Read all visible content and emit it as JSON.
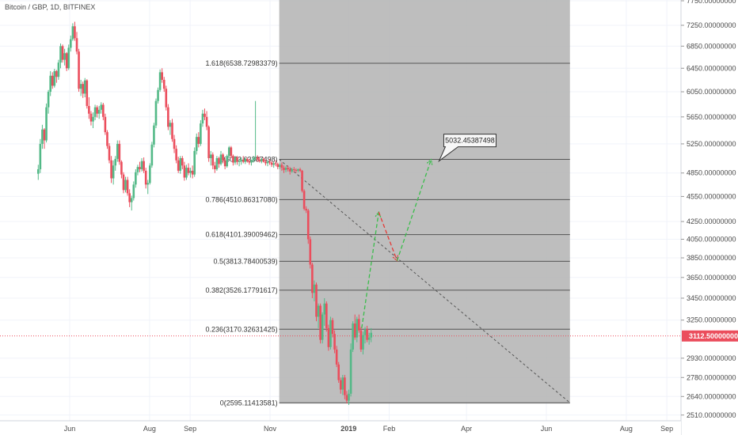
{
  "header": {
    "title": "Bitcoin / GBP, 1D, BITFINEX"
  },
  "colors": {
    "up": "#53b987",
    "down": "#eb4d5c",
    "projection_up": "#3bbd4c",
    "projection_down": "#e53935",
    "shaded_region": "#b3b3b3",
    "current_price_line": "#eb4d5c",
    "grid": "#f0f3fa",
    "axis_text": "#4a4a4a"
  },
  "chart_data": {
    "type": "candlestick",
    "symbol": "Bitcoin / GBP",
    "interval": "1D",
    "exchange": "BITFINEX",
    "y_axis": {
      "scale": "log",
      "ylim": [
        2450,
        7800
      ],
      "ticks": [
        "7750.00000000",
        "7250.00000000",
        "6850.00000000",
        "6450.00000000",
        "6050.00000000",
        "5650.00000000",
        "5250.00000000",
        "4850.00000000",
        "4550.00000000",
        "4250.00000000",
        "4050.00000000",
        "3850.00000000",
        "3650.00000000",
        "3450.00000000",
        "3250.00000000",
        "2930.00000000",
        "2780.00000000",
        "2640.00000000",
        "2510.00000000"
      ]
    },
    "x_axis": {
      "labels": [
        {
          "label": "Jun",
          "day": 152
        },
        {
          "label": "Aug",
          "day": 213
        },
        {
          "label": "Sep",
          "day": 244
        },
        {
          "label": "Nov",
          "day": 305
        },
        {
          "label": "2019",
          "day": 365
        },
        {
          "label": "Feb",
          "day": 396
        },
        {
          "label": "Apr",
          "day": 455
        },
        {
          "label": "Jun",
          "day": 516
        },
        {
          "label": "Aug",
          "day": 577
        },
        {
          "label": "Sep",
          "day": 608
        }
      ]
    },
    "current_price": {
      "label": "3112.50000000",
      "value": 3112.5
    },
    "fibonacci": {
      "start_day": 312,
      "end_day": 534,
      "levels": [
        {
          "label": "1.618(6538.72983379)",
          "value": 6538.72983379
        },
        {
          "label": "1(5033.63387498)",
          "value": 5033.63387498
        },
        {
          "label": "0.786(4510.86317080)",
          "value": 4510.8631708
        },
        {
          "label": "0.618(4101.39009462)",
          "value": 4101.39009462
        },
        {
          "label": "0.5(3813.78400539)",
          "value": 3813.78400539
        },
        {
          "label": "0.382(3526.17791617)",
          "value": 3526.17791617
        },
        {
          "label": "0.236(3170.32631425)",
          "value": 3170.32631425
        },
        {
          "label": "0(2595.11413581)",
          "value": 2595.11413581
        }
      ]
    },
    "trend_line": {
      "from": [
        312,
        5033.6
      ],
      "to": [
        534,
        2595.1
      ]
    },
    "projection": [
      {
        "segment": "up",
        "from": [
          375,
          3180
        ],
        "to": [
          388,
          4360
        ]
      },
      {
        "segment": "down",
        "from": [
          388,
          4360
        ],
        "to": [
          402,
          3820
        ]
      },
      {
        "segment": "up",
        "from": [
          402,
          3820
        ],
        "to": [
          428,
          5032
        ]
      }
    ],
    "target_label": {
      "label": "5032.45387498",
      "value": 5032.45387498
    },
    "candles": [
      [
        4840,
        4960,
        4760,
        4900
      ],
      [
        4900,
        5320,
        4850,
        5250
      ],
      [
        5250,
        5530,
        5180,
        5460
      ],
      [
        5460,
        5480,
        5180,
        5300
      ],
      [
        5300,
        5860,
        5270,
        5800
      ],
      [
        5800,
        6080,
        5700,
        6050
      ],
      [
        6050,
        6400,
        5980,
        6320
      ],
      [
        6320,
        6380,
        6100,
        6150
      ],
      [
        6150,
        6440,
        6120,
        6400
      ],
      [
        6400,
        6420,
        6200,
        6300
      ],
      [
        6300,
        6600,
        6250,
        6550
      ],
      [
        6550,
        6900,
        6450,
        6850
      ],
      [
        6850,
        6880,
        6550,
        6600
      ],
      [
        6600,
        6800,
        6500,
        6720
      ],
      [
        6720,
        6740,
        6400,
        6450
      ],
      [
        6450,
        6880,
        6420,
        6820
      ],
      [
        6820,
        7050,
        6750,
        6980
      ],
      [
        6980,
        7290,
        6950,
        7230
      ],
      [
        7230,
        7320,
        6950,
        7000
      ],
      [
        7000,
        7120,
        6700,
        6750
      ],
      [
        6750,
        6800,
        6050,
        6100
      ],
      [
        6100,
        6250,
        5980,
        6180
      ],
      [
        6180,
        6220,
        5950,
        6020
      ],
      [
        6020,
        6280,
        5960,
        6240
      ],
      [
        6240,
        6260,
        5780,
        5820
      ],
      [
        5820,
        5960,
        5620,
        5700
      ],
      [
        5700,
        5740,
        5520,
        5580
      ],
      [
        5580,
        5720,
        5480,
        5650
      ],
      [
        5650,
        5840,
        5600,
        5800
      ],
      [
        5800,
        5830,
        5640,
        5700
      ],
      [
        5700,
        5820,
        5620,
        5760
      ],
      [
        5760,
        5880,
        5700,
        5840
      ],
      [
        5840,
        5870,
        5600,
        5650
      ],
      [
        5650,
        5700,
        5380,
        5420
      ],
      [
        5420,
        5450,
        5180,
        5220
      ],
      [
        5220,
        5260,
        4980,
        5020
      ],
      [
        5020,
        5080,
        4720,
        4780
      ],
      [
        4780,
        5020,
        4700,
        4950
      ],
      [
        4950,
        5080,
        4880,
        5040
      ],
      [
        5040,
        5300,
        5000,
        5250
      ],
      [
        5250,
        5300,
        4960,
        5000
      ],
      [
        5000,
        5020,
        4780,
        4830
      ],
      [
        4830,
        4860,
        4590,
        4630
      ],
      [
        4630,
        4800,
        4600,
        4760
      ],
      [
        4760,
        4800,
        4560,
        4590
      ],
      [
        4590,
        4640,
        4420,
        4480
      ],
      [
        4480,
        4560,
        4380,
        4530
      ],
      [
        4530,
        4740,
        4500,
        4700
      ],
      [
        4700,
        4900,
        4660,
        4860
      ],
      [
        4860,
        4960,
        4820,
        4930
      ],
      [
        4930,
        5000,
        4860,
        4900
      ],
      [
        4900,
        5050,
        4870,
        5010
      ],
      [
        5010,
        5060,
        4850,
        4880
      ],
      [
        4880,
        4920,
        4650,
        4700
      ],
      [
        4700,
        4760,
        4580,
        4720
      ],
      [
        4720,
        4980,
        4700,
        4950
      ],
      [
        4950,
        5280,
        4920,
        5240
      ],
      [
        5240,
        5560,
        5200,
        5520
      ],
      [
        5520,
        5940,
        5480,
        5900
      ],
      [
        5900,
        6120,
        5860,
        6080
      ],
      [
        6080,
        6430,
        6050,
        6380
      ],
      [
        6380,
        6450,
        6200,
        6250
      ],
      [
        6250,
        6300,
        6050,
        6100
      ],
      [
        6100,
        6150,
        5750,
        5800
      ],
      [
        5800,
        5850,
        5450,
        5500
      ],
      [
        5500,
        5600,
        5380,
        5560
      ],
      [
        5560,
        5620,
        5280,
        5320
      ],
      [
        5320,
        5380,
        5120,
        5180
      ],
      [
        5180,
        5230,
        4980,
        5020
      ],
      [
        5020,
        5070,
        4850,
        4880
      ],
      [
        4880,
        5080,
        4840,
        5050
      ],
      [
        5050,
        5080,
        4900,
        4950
      ],
      [
        4950,
        5000,
        4750,
        4790
      ],
      [
        4790,
        4960,
        4760,
        4920
      ],
      [
        4920,
        4980,
        4820,
        4850
      ],
      [
        4850,
        4920,
        4790,
        4880
      ],
      [
        4880,
        4950,
        4780,
        4830
      ],
      [
        4830,
        5200,
        4800,
        5150
      ],
      [
        5150,
        5400,
        5100,
        5350
      ],
      [
        5350,
        5420,
        5200,
        5250
      ],
      [
        5250,
        5600,
        5220,
        5550
      ],
      [
        5550,
        5760,
        5500,
        5700
      ],
      [
        5700,
        5780,
        5600,
        5650
      ],
      [
        5650,
        5740,
        5450,
        5500
      ],
      [
        5500,
        5520,
        5000,
        5050
      ],
      [
        5050,
        5150,
        4950,
        5100
      ],
      [
        5100,
        5130,
        4900,
        4950
      ],
      [
        4950,
        5000,
        4850,
        4900
      ],
      [
        4900,
        5080,
        4880,
        5050
      ],
      [
        5050,
        5070,
        4920,
        4970
      ],
      [
        4970,
        5150,
        4950,
        5100
      ],
      [
        5100,
        5120,
        4980,
        5020
      ],
      [
        5020,
        5050,
        4900,
        4940
      ],
      [
        4940,
        5100,
        4920,
        5080
      ],
      [
        5080,
        5220,
        5050,
        5200
      ],
      [
        5200,
        5220,
        5050,
        5080
      ],
      [
        5080,
        5100,
        4950,
        4990
      ],
      [
        4990,
        5080,
        4960,
        5060
      ],
      [
        5060,
        5080,
        4960,
        5000
      ],
      [
        5000,
        5040,
        4940,
        5010
      ],
      [
        5010,
        5060,
        4960,
        5030
      ],
      [
        5030,
        5080,
        4980,
        5000
      ],
      [
        5000,
        5050,
        4970,
        5040
      ],
      [
        5040,
        5060,
        4990,
        5010
      ],
      [
        5010,
        5040,
        4960,
        4990
      ],
      [
        4990,
        5030,
        4950,
        5020
      ],
      [
        5020,
        5080,
        4990,
        5050
      ],
      [
        5050,
        5900,
        5020,
        5060
      ],
      [
        5060,
        5090,
        5000,
        5030
      ],
      [
        5030,
        5070,
        4990,
        5010
      ],
      [
        5010,
        5050,
        4980,
        5040
      ],
      [
        5040,
        5060,
        4990,
        5000
      ],
      [
        5000,
        5030,
        4950,
        4980
      ],
      [
        4980,
        5020,
        4940,
        5000
      ],
      [
        5000,
        5040,
        4960,
        4990
      ],
      [
        4990,
        5010,
        4930,
        4960
      ],
      [
        4960,
        5000,
        4920,
        4980
      ],
      [
        4980,
        5020,
        4940,
        4970
      ],
      [
        4970,
        4990,
        4900,
        4930
      ],
      [
        4930,
        4980,
        4900,
        4960
      ],
      [
        4960,
        4990,
        4880,
        4920
      ],
      [
        4920,
        4950,
        4850,
        4890
      ],
      [
        4890,
        4940,
        4860,
        4920
      ],
      [
        4920,
        4950,
        4870,
        4900
      ],
      [
        4900,
        4930,
        4830,
        4870
      ],
      [
        4870,
        4920,
        4850,
        4900
      ],
      [
        4900,
        4930,
        4860,
        4890
      ],
      [
        4890,
        4910,
        4850,
        4880
      ],
      [
        4880,
        4910,
        4860,
        4900
      ],
      [
        4900,
        4920,
        4860,
        4880
      ],
      [
        4880,
        4890,
        4600,
        4620
      ],
      [
        4620,
        4640,
        4380,
        4400
      ],
      [
        4400,
        4430,
        4350,
        4380
      ],
      [
        4380,
        4400,
        4000,
        4050
      ],
      [
        4050,
        4080,
        3740,
        3780
      ],
      [
        3780,
        3800,
        3450,
        3500
      ],
      [
        3500,
        3620,
        3420,
        3580
      ],
      [
        3580,
        3600,
        3240,
        3280
      ],
      [
        3280,
        3400,
        3180,
        3380
      ],
      [
        3380,
        3400,
        3050,
        3080
      ],
      [
        3080,
        3320,
        3050,
        3300
      ],
      [
        3300,
        3450,
        3200,
        3400
      ],
      [
        3400,
        3420,
        3150,
        3180
      ],
      [
        3180,
        3210,
        2990,
        3020
      ],
      [
        3020,
        3280,
        3000,
        3250
      ],
      [
        3250,
        3270,
        3100,
        3130
      ],
      [
        3130,
        3160,
        2970,
        3000
      ],
      [
        3000,
        3030,
        2860,
        2880
      ],
      [
        2880,
        2900,
        2740,
        2760
      ],
      [
        2760,
        2780,
        2660,
        2690
      ],
      [
        2690,
        2800,
        2650,
        2780
      ],
      [
        2780,
        2800,
        2620,
        2650
      ],
      [
        2650,
        2680,
        2590,
        2610
      ],
      [
        2610,
        2690,
        2580,
        2660
      ],
      [
        2660,
        3050,
        2640,
        3000
      ],
      [
        3000,
        3240,
        2980,
        3220
      ],
      [
        3220,
        3300,
        3080,
        3100
      ],
      [
        3100,
        3280,
        3060,
        3260
      ],
      [
        3260,
        3300,
        3140,
        3160
      ],
      [
        3160,
        3190,
        2980,
        3000
      ],
      [
        3000,
        3150,
        2960,
        3120
      ],
      [
        3120,
        3190,
        3050,
        3170
      ],
      [
        3170,
        3200,
        3060,
        3080
      ],
      [
        3080,
        3140,
        3040,
        3100
      ],
      [
        3100,
        3180,
        3060,
        3140
      ]
    ]
  }
}
